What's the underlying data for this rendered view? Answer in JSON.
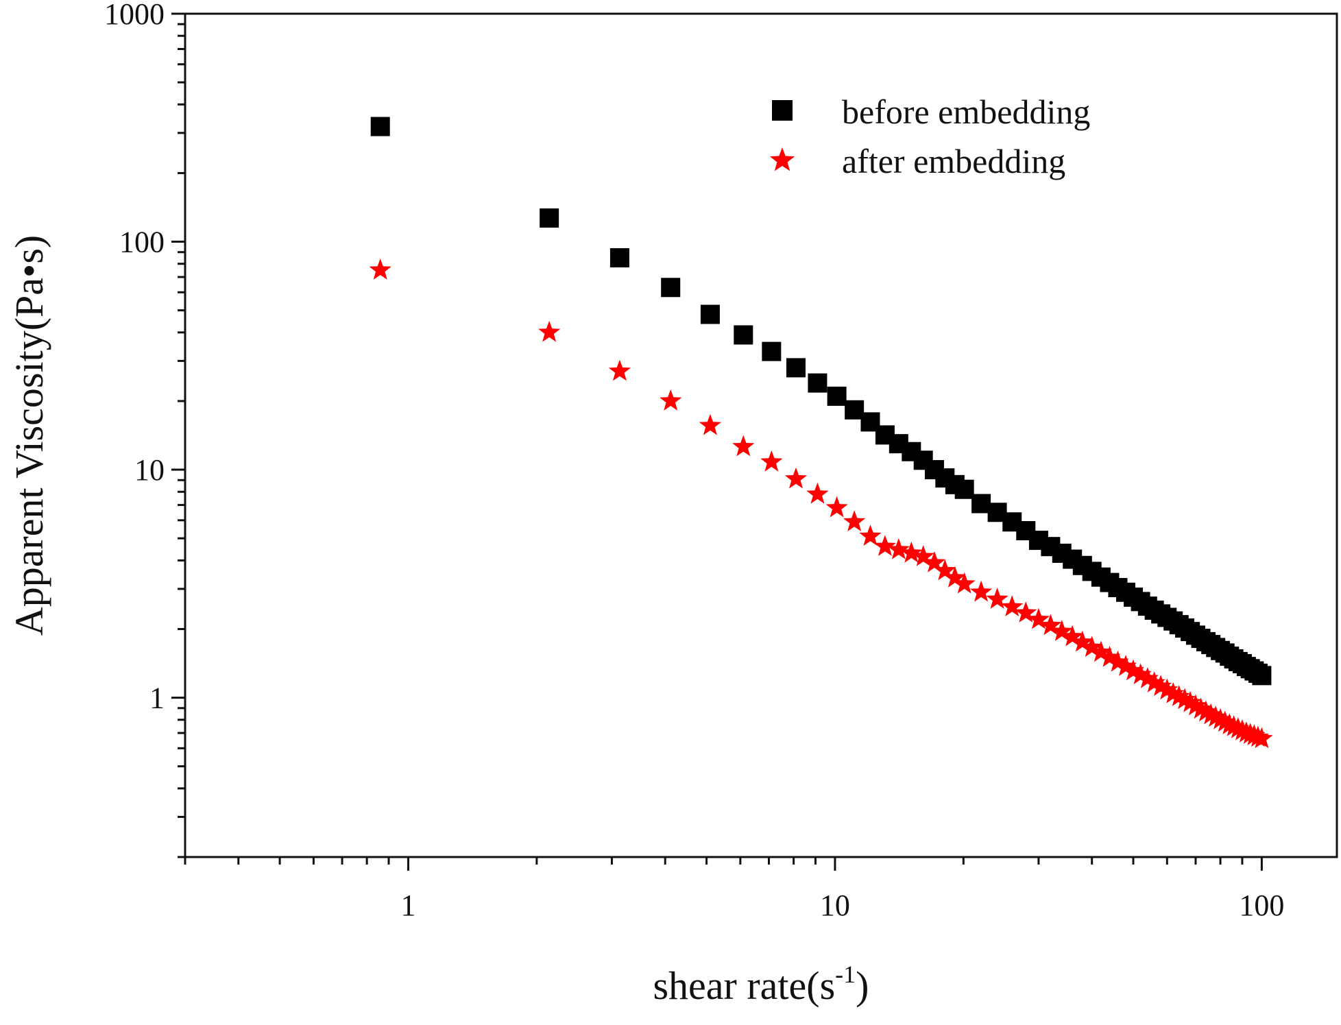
{
  "chart_data": {
    "type": "scatter",
    "xlabel": "shear rate(s",
    "xlabel_sup": "-1",
    "xlabel_close": ")",
    "ylabel": "Apparent Viscosity(Pa•s)",
    "x_scale": "log",
    "y_scale": "log",
    "xlim": [
      0.3,
      150
    ],
    "ylim": [
      0.2,
      1000
    ],
    "grid": false,
    "legend_position": "top-right",
    "x_ticks": [
      "1",
      "10",
      "100"
    ],
    "y_ticks": [
      "1",
      "10",
      "100",
      "1000"
    ],
    "series": [
      {
        "name": "before embedding",
        "marker": "square",
        "color": "#000000",
        "x": [
          0.86,
          2.14,
          3.13,
          4.12,
          5.1,
          6.1,
          7.1,
          8.1,
          9.1,
          10.1,
          11.1,
          12.1,
          13.1,
          14.1,
          15.1,
          16.1,
          17.1,
          18.1,
          19.1,
          20.1,
          22,
          24,
          26,
          28,
          30,
          32,
          34,
          36,
          38,
          40,
          42,
          44,
          46,
          48,
          50,
          52,
          54,
          56,
          58,
          60,
          62,
          64,
          66,
          68,
          70,
          72,
          74,
          76,
          78,
          80,
          82,
          84,
          86,
          88,
          90,
          92,
          94,
          96,
          98,
          100
        ],
        "y": [
          320,
          127,
          85,
          63,
          48,
          39,
          33,
          28,
          24,
          21,
          18.3,
          16.2,
          14.2,
          13,
          12,
          11,
          10,
          9.2,
          8.6,
          8.2,
          7.1,
          6.5,
          5.9,
          5.4,
          4.9,
          4.6,
          4.3,
          4.05,
          3.8,
          3.58,
          3.38,
          3.2,
          3.04,
          2.9,
          2.76,
          2.64,
          2.52,
          2.42,
          2.33,
          2.25,
          2.17,
          2.09,
          2.02,
          1.95,
          1.88,
          1.82,
          1.76,
          1.71,
          1.66,
          1.61,
          1.57,
          1.52,
          1.48,
          1.44,
          1.41,
          1.37,
          1.34,
          1.31,
          1.28,
          1.25
        ]
      },
      {
        "name": "after embedding",
        "marker": "star",
        "color": "#ff0000",
        "x": [
          0.86,
          2.14,
          3.13,
          4.12,
          5.1,
          6.1,
          7.1,
          8.1,
          9.1,
          10.1,
          11.1,
          12.1,
          13.1,
          14.1,
          15.1,
          16.1,
          17.1,
          18.1,
          19.1,
          20.1,
          22,
          24,
          26,
          28,
          30,
          32,
          34,
          36,
          38,
          40,
          42,
          44,
          46,
          48,
          50,
          52,
          54,
          56,
          58,
          60,
          62,
          64,
          66,
          68,
          70,
          72,
          74,
          76,
          78,
          80,
          82,
          84,
          86,
          88,
          90,
          92,
          94,
          96,
          98,
          100
        ],
        "y": [
          75,
          40,
          27,
          20,
          15.6,
          12.6,
          10.8,
          9.1,
          7.8,
          6.8,
          5.9,
          5.1,
          4.6,
          4.45,
          4.3,
          4.15,
          3.9,
          3.6,
          3.35,
          3.15,
          2.9,
          2.7,
          2.5,
          2.35,
          2.2,
          2.07,
          1.95,
          1.85,
          1.75,
          1.66,
          1.58,
          1.5,
          1.43,
          1.37,
          1.31,
          1.26,
          1.21,
          1.16,
          1.12,
          1.08,
          1.04,
          1.01,
          0.98,
          0.95,
          0.92,
          0.89,
          0.865,
          0.84,
          0.82,
          0.8,
          0.78,
          0.76,
          0.745,
          0.73,
          0.715,
          0.7,
          0.69,
          0.68,
          0.67,
          0.66
        ]
      }
    ]
  }
}
